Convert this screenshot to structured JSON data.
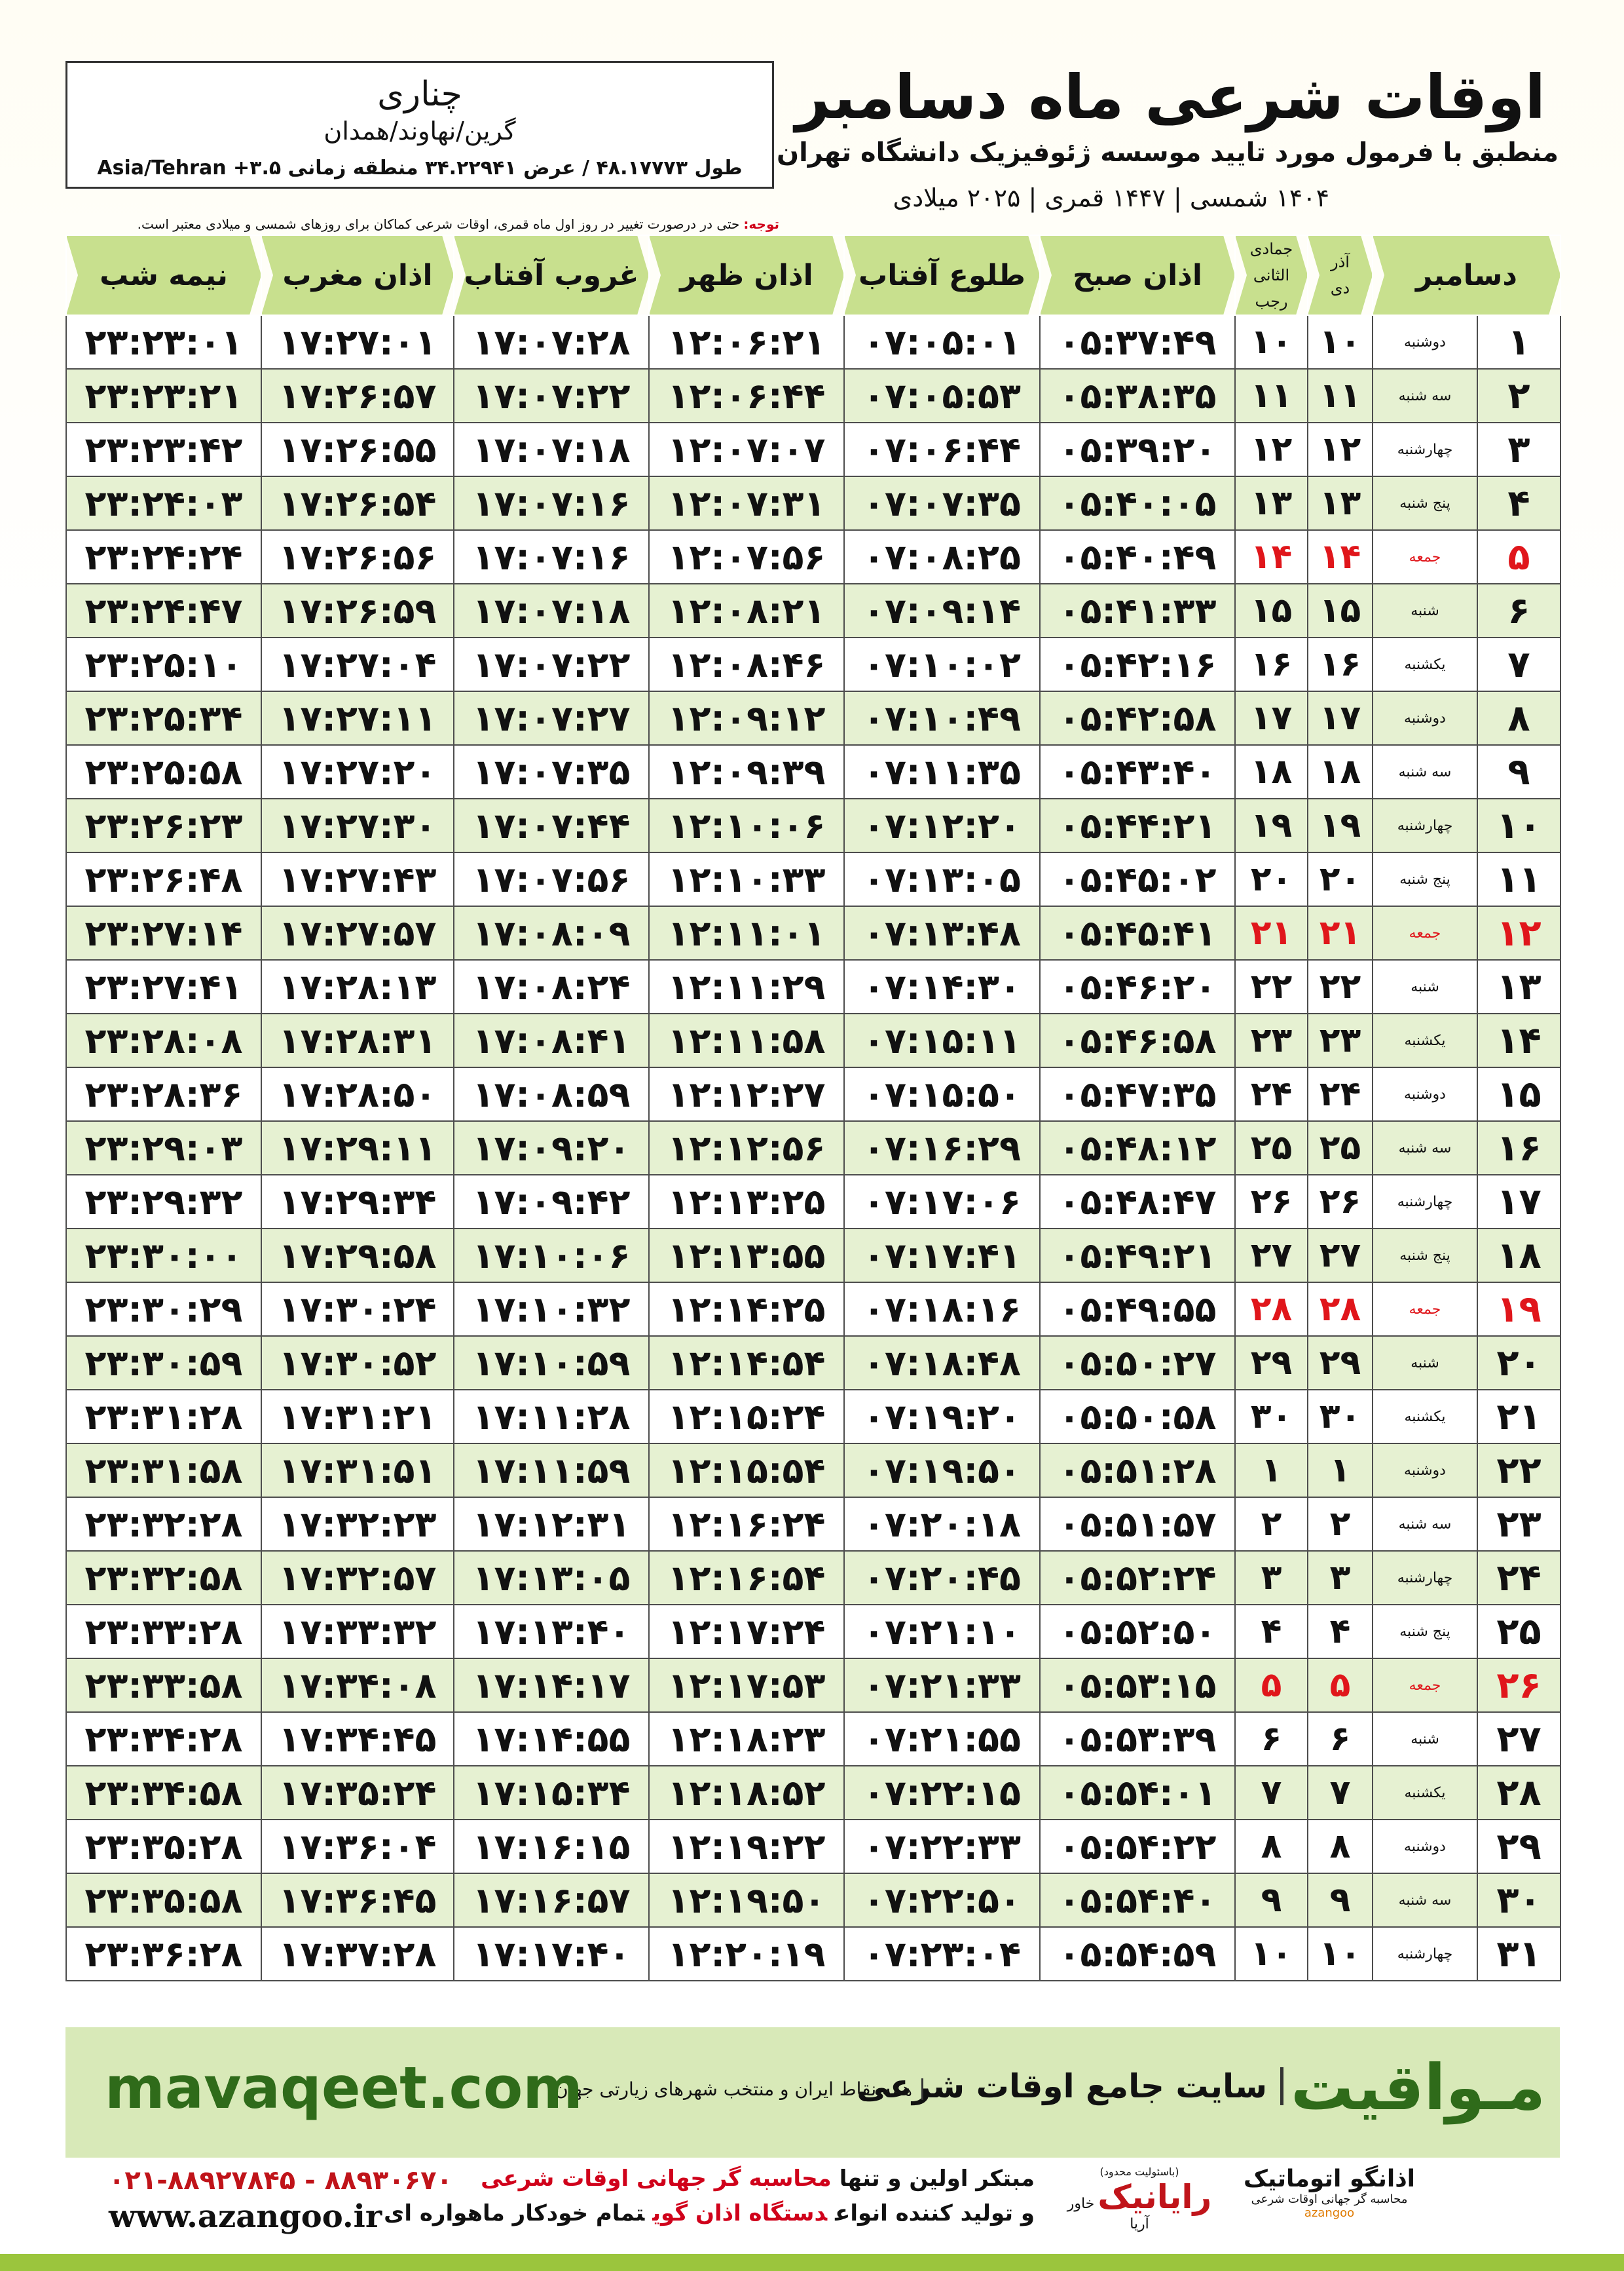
{
  "header": {
    "title": "اوقات شرعی ماه دسامبر",
    "subtitle": "منطبق با فرمول مورد تایید موسسه ژئوفیزیک دانشگاه تهران",
    "date_line": "۱۴۰۴ شمسی | ۱۴۴۷ قمری | ۲۰۲۵ میلادی"
  },
  "location": {
    "city": "چناری",
    "region": "گرین/نهاوند/همدان",
    "coords": "طول ۴۸.۱۷۷۷۳ / عرض ۳۴.۲۲۹۴۱ منطقه زمانی ۳.۵+ Asia/Tehran"
  },
  "note": {
    "label": "توجه:",
    "text": "حتی در درصورت تغییر در روز اول ماه قمری، اوقات شرعی کماکان برای روزهای شمسی و میلادی معتبر است."
  },
  "table": {
    "month": "دسامبر",
    "month_columns": [
      {
        "top": "آذر",
        "bottom": "دی"
      },
      {
        "top": "جمادی الثانی",
        "bottom": "رجب"
      }
    ],
    "time_columns": [
      "اذان صبح",
      "طلوع آفتاب",
      "اذان ظهر",
      "غروب آفتاب",
      "اذان مغرب",
      "نیمه شب"
    ],
    "rows": [
      {
        "cells": [
          "۱",
          "دوشنبه",
          "۱۰",
          "۱۰",
          "۰۵:۳۷:۴۹",
          "۰۷:۰۵:۰۱",
          "۱۲:۰۶:۲۱",
          "۱۷:۰۷:۲۸",
          "۱۷:۲۷:۰۱",
          "۲۳:۲۳:۰۱"
        ]
      },
      {
        "cells": [
          "۲",
          "سه شنبه",
          "۱۱",
          "۱۱",
          "۰۵:۳۸:۳۵",
          "۰۷:۰۵:۵۳",
          "۱۲:۰۶:۴۴",
          "۱۷:۰۷:۲۲",
          "۱۷:۲۶:۵۷",
          "۲۳:۲۳:۲۱"
        ]
      },
      {
        "cells": [
          "۳",
          "چهارشنبه",
          "۱۲",
          "۱۲",
          "۰۵:۳۹:۲۰",
          "۰۷:۰۶:۴۴",
          "۱۲:۰۷:۰۷",
          "۱۷:۰۷:۱۸",
          "۱۷:۲۶:۵۵",
          "۲۳:۲۳:۴۲"
        ]
      },
      {
        "cells": [
          "۴",
          "پنج شنبه",
          "۱۳",
          "۱۳",
          "۰۵:۴۰:۰۵",
          "۰۷:۰۷:۳۵",
          "۱۲:۰۷:۳۱",
          "۱۷:۰۷:۱۶",
          "۱۷:۲۶:۵۴",
          "۲۳:۲۴:۰۳"
        ]
      },
      {
        "cells": [
          "۵",
          "جمعه",
          "۱۴",
          "۱۴",
          "۰۵:۴۰:۴۹",
          "۰۷:۰۸:۲۵",
          "۱۲:۰۷:۵۶",
          "۱۷:۰۷:۱۶",
          "۱۷:۲۶:۵۶",
          "۲۳:۲۴:۲۴"
        ],
        "holiday": true
      },
      {
        "cells": [
          "۶",
          "شنبه",
          "۱۵",
          "۱۵",
          "۰۵:۴۱:۳۳",
          "۰۷:۰۹:۱۴",
          "۱۲:۰۸:۲۱",
          "۱۷:۰۷:۱۸",
          "۱۷:۲۶:۵۹",
          "۲۳:۲۴:۴۷"
        ]
      },
      {
        "cells": [
          "۷",
          "یکشنبه",
          "۱۶",
          "۱۶",
          "۰۵:۴۲:۱۶",
          "۰۷:۱۰:۰۲",
          "۱۲:۰۸:۴۶",
          "۱۷:۰۷:۲۲",
          "۱۷:۲۷:۰۴",
          "۲۳:۲۵:۱۰"
        ]
      },
      {
        "cells": [
          "۸",
          "دوشنبه",
          "۱۷",
          "۱۷",
          "۰۵:۴۲:۵۸",
          "۰۷:۱۰:۴۹",
          "۱۲:۰۹:۱۲",
          "۱۷:۰۷:۲۷",
          "۱۷:۲۷:۱۱",
          "۲۳:۲۵:۳۴"
        ]
      },
      {
        "cells": [
          "۹",
          "سه شنبه",
          "۱۸",
          "۱۸",
          "۰۵:۴۳:۴۰",
          "۰۷:۱۱:۳۵",
          "۱۲:۰۹:۳۹",
          "۱۷:۰۷:۳۵",
          "۱۷:۲۷:۲۰",
          "۲۳:۲۵:۵۸"
        ]
      },
      {
        "cells": [
          "۱۰",
          "چهارشنبه",
          "۱۹",
          "۱۹",
          "۰۵:۴۴:۲۱",
          "۰۷:۱۲:۲۰",
          "۱۲:۱۰:۰۶",
          "۱۷:۰۷:۴۴",
          "۱۷:۲۷:۳۰",
          "۲۳:۲۶:۲۳"
        ]
      },
      {
        "cells": [
          "۱۱",
          "پنج شنبه",
          "۲۰",
          "۲۰",
          "۰۵:۴۵:۰۲",
          "۰۷:۱۳:۰۵",
          "۱۲:۱۰:۳۳",
          "۱۷:۰۷:۵۶",
          "۱۷:۲۷:۴۳",
          "۲۳:۲۶:۴۸"
        ]
      },
      {
        "cells": [
          "۱۲",
          "جمعه",
          "۲۱",
          "۲۱",
          "۰۵:۴۵:۴۱",
          "۰۷:۱۳:۴۸",
          "۱۲:۱۱:۰۱",
          "۱۷:۰۸:۰۹",
          "۱۷:۲۷:۵۷",
          "۲۳:۲۷:۱۴"
        ],
        "holiday": true
      },
      {
        "cells": [
          "۱۳",
          "شنبه",
          "۲۲",
          "۲۲",
          "۰۵:۴۶:۲۰",
          "۰۷:۱۴:۳۰",
          "۱۲:۱۱:۲۹",
          "۱۷:۰۸:۲۴",
          "۱۷:۲۸:۱۳",
          "۲۳:۲۷:۴۱"
        ]
      },
      {
        "cells": [
          "۱۴",
          "یکشنبه",
          "۲۳",
          "۲۳",
          "۰۵:۴۶:۵۸",
          "۰۷:۱۵:۱۱",
          "۱۲:۱۱:۵۸",
          "۱۷:۰۸:۴۱",
          "۱۷:۲۸:۳۱",
          "۲۳:۲۸:۰۸"
        ]
      },
      {
        "cells": [
          "۱۵",
          "دوشنبه",
          "۲۴",
          "۲۴",
          "۰۵:۴۷:۳۵",
          "۰۷:۱۵:۵۰",
          "۱۲:۱۲:۲۷",
          "۱۷:۰۸:۵۹",
          "۱۷:۲۸:۵۰",
          "۲۳:۲۸:۳۶"
        ]
      },
      {
        "cells": [
          "۱۶",
          "سه شنبه",
          "۲۵",
          "۲۵",
          "۰۵:۴۸:۱۲",
          "۰۷:۱۶:۲۹",
          "۱۲:۱۲:۵۶",
          "۱۷:۰۹:۲۰",
          "۱۷:۲۹:۱۱",
          "۲۳:۲۹:۰۳"
        ]
      },
      {
        "cells": [
          "۱۷",
          "چهارشنبه",
          "۲۶",
          "۲۶",
          "۰۵:۴۸:۴۷",
          "۰۷:۱۷:۰۶",
          "۱۲:۱۳:۲۵",
          "۱۷:۰۹:۴۲",
          "۱۷:۲۹:۳۴",
          "۲۳:۲۹:۳۲"
        ]
      },
      {
        "cells": [
          "۱۸",
          "پنج شنبه",
          "۲۷",
          "۲۷",
          "۰۵:۴۹:۲۱",
          "۰۷:۱۷:۴۱",
          "۱۲:۱۳:۵۵",
          "۱۷:۱۰:۰۶",
          "۱۷:۲۹:۵۸",
          "۲۳:۳۰:۰۰"
        ]
      },
      {
        "cells": [
          "۱۹",
          "جمعه",
          "۲۸",
          "۲۸",
          "۰۵:۴۹:۵۵",
          "۰۷:۱۸:۱۶",
          "۱۲:۱۴:۲۵",
          "۱۷:۱۰:۳۲",
          "۱۷:۳۰:۲۴",
          "۲۳:۳۰:۲۹"
        ],
        "holiday": true
      },
      {
        "cells": [
          "۲۰",
          "شنبه",
          "۲۹",
          "۲۹",
          "۰۵:۵۰:۲۷",
          "۰۷:۱۸:۴۸",
          "۱۲:۱۴:۵۴",
          "۱۷:۱۰:۵۹",
          "۱۷:۳۰:۵۲",
          "۲۳:۳۰:۵۹"
        ]
      },
      {
        "cells": [
          "۲۱",
          "یکشنبه",
          "۳۰",
          "۳۰",
          "۰۵:۵۰:۵۸",
          "۰۷:۱۹:۲۰",
          "۱۲:۱۵:۲۴",
          "۱۷:۱۱:۲۸",
          "۱۷:۳۱:۲۱",
          "۲۳:۳۱:۲۸"
        ]
      },
      {
        "cells": [
          "۲۲",
          "دوشنبه",
          "۱",
          "۱",
          "۰۵:۵۱:۲۸",
          "۰۷:۱۹:۵۰",
          "۱۲:۱۵:۵۴",
          "۱۷:۱۱:۵۹",
          "۱۷:۳۱:۵۱",
          "۲۳:۳۱:۵۸"
        ]
      },
      {
        "cells": [
          "۲۳",
          "سه شنبه",
          "۲",
          "۲",
          "۰۵:۵۱:۵۷",
          "۰۷:۲۰:۱۸",
          "۱۲:۱۶:۲۴",
          "۱۷:۱۲:۳۱",
          "۱۷:۳۲:۲۳",
          "۲۳:۳۲:۲۸"
        ]
      },
      {
        "cells": [
          "۲۴",
          "چهارشنبه",
          "۳",
          "۳",
          "۰۵:۵۲:۲۴",
          "۰۷:۲۰:۴۵",
          "۱۲:۱۶:۵۴",
          "۱۷:۱۳:۰۵",
          "۱۷:۳۲:۵۷",
          "۲۳:۳۲:۵۸"
        ]
      },
      {
        "cells": [
          "۲۵",
          "پنج شنبه",
          "۴",
          "۴",
          "۰۵:۵۲:۵۰",
          "۰۷:۲۱:۱۰",
          "۱۲:۱۷:۲۴",
          "۱۷:۱۳:۴۰",
          "۱۷:۳۳:۳۲",
          "۲۳:۳۳:۲۸"
        ]
      },
      {
        "cells": [
          "۲۶",
          "جمعه",
          "۵",
          "۵",
          "۰۵:۵۳:۱۵",
          "۰۷:۲۱:۳۳",
          "۱۲:۱۷:۵۳",
          "۱۷:۱۴:۱۷",
          "۱۷:۳۴:۰۸",
          "۲۳:۳۳:۵۸"
        ],
        "holiday": true
      },
      {
        "cells": [
          "۲۷",
          "شنبه",
          "۶",
          "۶",
          "۰۵:۵۳:۳۹",
          "۰۷:۲۱:۵۵",
          "۱۲:۱۸:۲۳",
          "۱۷:۱۴:۵۵",
          "۱۷:۳۴:۴۵",
          "۲۳:۳۴:۲۸"
        ]
      },
      {
        "cells": [
          "۲۸",
          "یکشنبه",
          "۷",
          "۷",
          "۰۵:۵۴:۰۱",
          "۰۷:۲۲:۱۵",
          "۱۲:۱۸:۵۲",
          "۱۷:۱۵:۳۴",
          "۱۷:۳۵:۲۴",
          "۲۳:۳۴:۵۸"
        ]
      },
      {
        "cells": [
          "۲۹",
          "دوشنبه",
          "۸",
          "۸",
          "۰۵:۵۴:۲۲",
          "۰۷:۲۲:۳۳",
          "۱۲:۱۹:۲۲",
          "۱۷:۱۶:۱۵",
          "۱۷:۳۶:۰۴",
          "۲۳:۳۵:۲۸"
        ]
      },
      {
        "cells": [
          "۳۰",
          "سه شنبه",
          "۹",
          "۹",
          "۰۵:۵۴:۴۰",
          "۰۷:۲۲:۵۰",
          "۱۲:۱۹:۵۰",
          "۱۷:۱۶:۵۷",
          "۱۷:۳۶:۴۵",
          "۲۳:۳۵:۵۸"
        ]
      },
      {
        "cells": [
          "۳۱",
          "چهارشنبه",
          "۱۰",
          "۱۰",
          "۰۵:۵۴:۵۹",
          "۰۷:۲۳:۰۴",
          "۱۲:۲۰:۱۹",
          "۱۷:۱۷:۴۰",
          "۱۷:۳۷:۲۸",
          "۲۳:۳۶:۲۸"
        ]
      }
    ]
  },
  "footer": {
    "brand": "مـواقیت",
    "tagline": "سایت جامع اوقات شرعی",
    "tagline2": "همه نقاط ایران و منتخب شهرهای زیارتی جهان",
    "site": "mavaqeet.com"
  },
  "contact": {
    "phone": "۰۲۱-۸۸۹۲۷۸۴۵ - ۸۸۹۳۰۶۷۰",
    "web": "www.azangoo.ir",
    "line1": [
      "مبتکر اولین و تنها",
      "محاسبه گر جهانی اوقات شرعی"
    ],
    "line2": [
      "و تولید کننده انواع",
      "دستگاه اذان گوی",
      "تمام خودکار ماهواره ای"
    ]
  },
  "logos": {
    "rayanik_note": "(باسئولیت محدود)",
    "rayanik": "رایانیک",
    "rayanik_sub": "خاور آریا",
    "azangoo": "اذانگو اتوماتیک",
    "azangoo_sub": "محاسبه گر جهانی اوقات شرعی",
    "azangoo_latin": "azangoo"
  }
}
